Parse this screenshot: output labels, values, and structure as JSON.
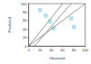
{
  "chart_data": {
    "type": "scatter",
    "x_label": "Observed",
    "y_label": "Predicted",
    "xlim": [
      0,
      100
    ],
    "xticks": [
      0,
      20,
      40,
      60,
      80,
      100
    ],
    "ylim": [
      0,
      100
    ],
    "yticks": [
      0,
      20,
      40,
      60,
      80,
      100
    ],
    "grid": false,
    "series": [
      {
        "type": "scatter",
        "color": "#a8e0f0",
        "marker": "square",
        "x": [
          20,
          30,
          38,
          44,
          75,
          80
        ],
        "y": [
          85,
          72,
          58,
          42,
          65,
          45
        ]
      },
      {
        "type": "line",
        "color": "#555555",
        "line_style": "solid",
        "x": [
          0,
          60
        ],
        "y": [
          0,
          100
        ]
      },
      {
        "type": "line",
        "color": "#555555",
        "line_style": "solid",
        "x": [
          10,
          75
        ],
        "y": [
          0,
          100
        ]
      },
      {
        "type": "line",
        "color": "#555555",
        "line_style": "solid",
        "x": [
          0,
          100
        ],
        "y": [
          0,
          100
        ]
      }
    ]
  }
}
